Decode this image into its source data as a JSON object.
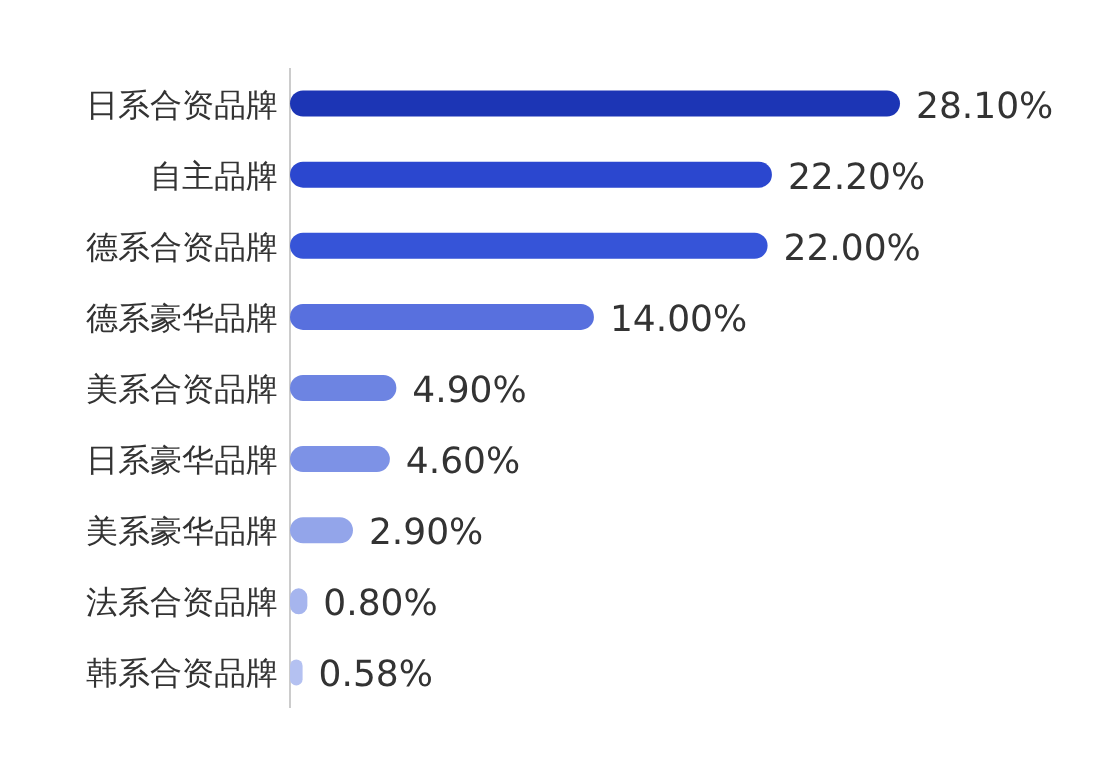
{
  "chart_data": {
    "type": "bar",
    "orientation": "horizontal",
    "categories": [
      "日系合资品牌",
      "自主品牌",
      "德系合资品牌",
      "德系豪华品牌",
      "美系合资品牌",
      "日系豪华品牌",
      "美系豪华品牌",
      "法系合资品牌",
      "韩系合资品牌"
    ],
    "values": [
      28.1,
      22.2,
      22.0,
      14.0,
      4.9,
      4.6,
      2.9,
      0.8,
      0.58
    ],
    "value_labels": [
      "28.10%",
      "22.20%",
      "22.00%",
      "14.00%",
      "4.90%",
      "4.60%",
      "2.90%",
      "0.80%",
      "0.58%"
    ],
    "colors": [
      "#1c35b5",
      "#2b47cf",
      "#3654d8",
      "#5870de",
      "#6d84e2",
      "#7d92e6",
      "#93a5ea",
      "#a6b5ee",
      "#b4c1f1"
    ]
  }
}
